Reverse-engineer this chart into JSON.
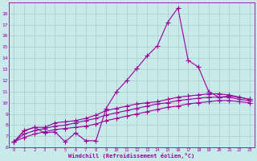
{
  "x_range": [
    -0.5,
    23.5
  ],
  "y_range": [
    6,
    19
  ],
  "xlabel": "Windchill (Refroidissement éolien,°C)",
  "background_color": "#c8eaea",
  "grid_color": "#a8cccc",
  "line_color": "#990099",
  "x_ticks": [
    0,
    1,
    2,
    3,
    4,
    5,
    6,
    7,
    8,
    9,
    10,
    11,
    12,
    13,
    14,
    15,
    16,
    17,
    18,
    19,
    20,
    21,
    22,
    23
  ],
  "y_ticks": [
    6,
    7,
    8,
    9,
    10,
    11,
    12,
    13,
    14,
    15,
    16,
    17,
    18
  ],
  "curve1_x": [
    0,
    1,
    2,
    3,
    4,
    5,
    6,
    7,
    8,
    9,
    10,
    11,
    12,
    13,
    14,
    15,
    16,
    17,
    18,
    19,
    20,
    21,
    22,
    23
  ],
  "curve1_y": [
    6.5,
    7.5,
    7.8,
    7.3,
    7.4,
    6.5,
    7.3,
    6.6,
    6.6,
    9.5,
    11.0,
    12.0,
    13.1,
    14.2,
    15.1,
    17.2,
    18.5,
    13.8,
    13.2,
    11.0,
    10.5,
    10.6,
    10.5,
    10.3
  ],
  "curve2_x": [
    0,
    1,
    2,
    3,
    4,
    5,
    6,
    7,
    8,
    9,
    10,
    11,
    12,
    13,
    14,
    15,
    16,
    17,
    18,
    19,
    20,
    21,
    22,
    23
  ],
  "curve2_y": [
    6.5,
    7.5,
    7.8,
    7.8,
    8.2,
    8.3,
    8.4,
    8.6,
    8.9,
    9.3,
    9.5,
    9.7,
    9.9,
    10.0,
    10.1,
    10.3,
    10.5,
    10.6,
    10.7,
    10.8,
    10.8,
    10.7,
    10.5,
    10.3
  ],
  "curve3_x": [
    0,
    1,
    2,
    3,
    4,
    5,
    6,
    7,
    8,
    9,
    10,
    11,
    12,
    13,
    14,
    15,
    16,
    17,
    18,
    19,
    20,
    21,
    22,
    23
  ],
  "curve3_y": [
    6.5,
    7.2,
    7.5,
    7.7,
    7.9,
    8.0,
    8.2,
    8.4,
    8.6,
    8.9,
    9.1,
    9.3,
    9.5,
    9.7,
    9.9,
    10.0,
    10.2,
    10.3,
    10.4,
    10.5,
    10.5,
    10.5,
    10.3,
    10.2
  ],
  "curve4_x": [
    0,
    1,
    2,
    3,
    4,
    5,
    6,
    7,
    8,
    9,
    10,
    11,
    12,
    13,
    14,
    15,
    16,
    17,
    18,
    19,
    20,
    21,
    22,
    23
  ],
  "curve4_y": [
    6.5,
    6.9,
    7.2,
    7.4,
    7.6,
    7.7,
    7.8,
    7.9,
    8.1,
    8.4,
    8.6,
    8.8,
    9.0,
    9.2,
    9.4,
    9.6,
    9.7,
    9.9,
    10.0,
    10.1,
    10.2,
    10.2,
    10.1,
    10.0
  ]
}
